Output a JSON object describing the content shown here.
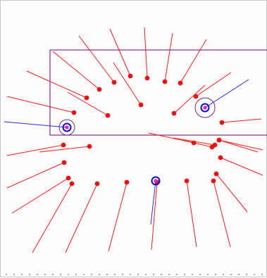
{
  "colors": {
    "background": "#fdfdfd",
    "rectangle": "#8a2a8a",
    "red_line": "#ff1a1a",
    "red_dot": "#e81212",
    "blue_line": "#2a2aee",
    "blue_ring": "#1010c8",
    "purple_circle": "#7a2a7a",
    "magenta_dot": "#e020c0",
    "ruler_dots": "#888888"
  },
  "icons": {
    "red_marker": "filled-circle",
    "blue_marker": "ring",
    "highlight": "circle"
  }
}
